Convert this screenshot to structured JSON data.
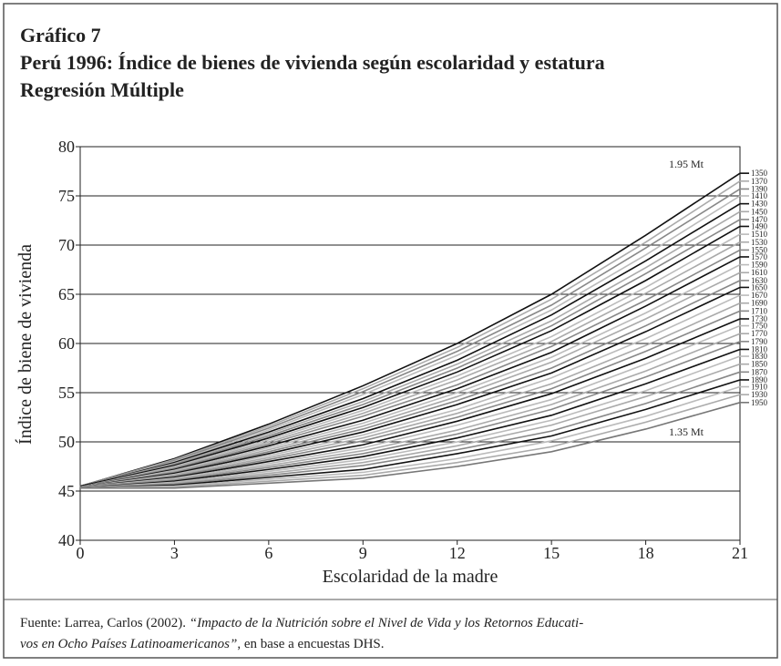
{
  "chart_data": {
    "type": "line",
    "title": [
      "Gráfico 7",
      "Perú 1996: Índice de bienes de vivienda según escolaridad y estatura",
      "Regresión Múltiple"
    ],
    "x_label": "Escolaridad de la madre",
    "y_label": "Índice de biene de vivienda",
    "annotations": [
      "1.95 Mt",
      "1.35 Mt"
    ],
    "x": [
      0,
      3,
      6,
      9,
      12,
      15,
      18,
      21
    ],
    "xlim": [
      0,
      21
    ],
    "xticks": [
      0,
      3,
      6,
      9,
      12,
      15,
      18,
      21
    ],
    "ylim": [
      40,
      80
    ],
    "yticks": [
      40,
      45,
      50,
      55,
      60,
      65,
      70,
      75,
      80
    ],
    "grid": true,
    "series": [
      {
        "name": "1350",
        "color": "#111",
        "values": [
          45.5,
          48.3,
          51.8,
          55.7,
          60.0,
          65.0,
          71.0,
          77.3
        ]
      },
      {
        "name": "1370",
        "color": "#aaa",
        "values": [
          45.5,
          48.2,
          51.6,
          55.4,
          59.6,
          64.5,
          70.3,
          76.5
        ]
      },
      {
        "name": "1390",
        "color": "#888",
        "values": [
          45.5,
          48.1,
          51.4,
          55.1,
          59.2,
          63.9,
          69.7,
          75.7
        ]
      },
      {
        "name": "1410",
        "color": "#bbb",
        "values": [
          45.5,
          48.0,
          51.2,
          54.8,
          58.8,
          63.4,
          69.0,
          75.0
        ]
      },
      {
        "name": "1430",
        "color": "#111",
        "values": [
          45.5,
          47.9,
          51.0,
          54.4,
          58.3,
          62.9,
          68.4,
          74.2
        ]
      },
      {
        "name": "1450",
        "color": "#aaa",
        "values": [
          45.5,
          47.8,
          50.8,
          54.1,
          57.9,
          62.3,
          67.7,
          73.4
        ]
      },
      {
        "name": "1470",
        "color": "#888",
        "values": [
          45.5,
          47.7,
          50.6,
          53.8,
          57.5,
          61.8,
          67.1,
          72.6
        ]
      },
      {
        "name": "1490",
        "color": "#111",
        "values": [
          45.5,
          47.6,
          50.4,
          53.5,
          57.1,
          61.3,
          66.4,
          71.9
        ]
      },
      {
        "name": "1510",
        "color": "#bbb",
        "values": [
          45.4,
          47.5,
          50.2,
          53.2,
          56.7,
          60.7,
          65.7,
          71.1
        ]
      },
      {
        "name": "1530",
        "color": "#aaa",
        "values": [
          45.4,
          47.4,
          50.0,
          52.9,
          56.3,
          60.2,
          65.1,
          70.3
        ]
      },
      {
        "name": "1550",
        "color": "#888",
        "values": [
          45.4,
          47.3,
          49.8,
          52.6,
          55.8,
          59.7,
          64.4,
          69.5
        ]
      },
      {
        "name": "1570",
        "color": "#111",
        "values": [
          45.4,
          47.2,
          49.6,
          52.2,
          55.4,
          59.1,
          63.8,
          68.8
        ]
      },
      {
        "name": "1590",
        "color": "#bbb",
        "values": [
          45.4,
          47.1,
          49.4,
          51.9,
          55.0,
          58.6,
          63.1,
          68.0
        ]
      },
      {
        "name": "1610",
        "color": "#aaa",
        "values": [
          45.4,
          47.0,
          49.2,
          51.6,
          54.6,
          58.1,
          62.5,
          67.2
        ]
      },
      {
        "name": "1630",
        "color": "#888",
        "values": [
          45.4,
          46.9,
          49.0,
          51.3,
          54.2,
          57.5,
          61.8,
          66.4
        ]
      },
      {
        "name": "1650",
        "color": "#111",
        "values": [
          45.4,
          46.8,
          48.8,
          51.0,
          53.8,
          57.0,
          61.2,
          65.7
        ]
      },
      {
        "name": "1670",
        "color": "#bbb",
        "values": [
          45.4,
          46.7,
          48.6,
          50.7,
          53.3,
          56.5,
          60.5,
          64.9
        ]
      },
      {
        "name": "1690",
        "color": "#aaa",
        "values": [
          45.4,
          46.6,
          48.4,
          50.4,
          52.9,
          55.9,
          59.8,
          64.1
        ]
      },
      {
        "name": "1710",
        "color": "#888",
        "values": [
          45.4,
          46.5,
          48.2,
          50.1,
          52.5,
          55.4,
          59.2,
          63.3
        ]
      },
      {
        "name": "1730",
        "color": "#111",
        "values": [
          45.4,
          46.4,
          48.0,
          49.7,
          52.1,
          54.9,
          58.5,
          62.5
        ]
      },
      {
        "name": "1750",
        "color": "#bbb",
        "values": [
          45.4,
          46.3,
          47.8,
          49.4,
          51.7,
          54.3,
          57.9,
          61.8
        ]
      },
      {
        "name": "1770",
        "color": "#aaa",
        "values": [
          45.4,
          46.2,
          47.6,
          49.1,
          51.2,
          53.8,
          57.2,
          61.0
        ]
      },
      {
        "name": "1790",
        "color": "#888",
        "values": [
          45.4,
          46.1,
          47.4,
          48.8,
          50.8,
          53.3,
          56.6,
          60.2
        ]
      },
      {
        "name": "1810",
        "color": "#111",
        "values": [
          45.3,
          46.0,
          47.2,
          48.5,
          50.4,
          52.7,
          55.9,
          59.4
        ]
      },
      {
        "name": "1830",
        "color": "#bbb",
        "values": [
          45.3,
          45.9,
          47.0,
          48.2,
          50.0,
          52.2,
          55.2,
          58.7
        ]
      },
      {
        "name": "1850",
        "color": "#aaa",
        "values": [
          45.3,
          45.8,
          46.8,
          47.9,
          49.6,
          51.7,
          54.6,
          57.9
        ]
      },
      {
        "name": "1870",
        "color": "#888",
        "values": [
          45.3,
          45.7,
          46.6,
          47.6,
          49.2,
          51.1,
          53.9,
          57.1
        ]
      },
      {
        "name": "1890",
        "color": "#111",
        "values": [
          45.3,
          45.6,
          46.4,
          47.2,
          48.8,
          50.6,
          53.3,
          56.3
        ]
      },
      {
        "name": "1910",
        "color": "#bbb",
        "values": [
          45.3,
          45.5,
          46.2,
          46.9,
          48.3,
          50.1,
          52.6,
          55.6
        ]
      },
      {
        "name": "1930",
        "color": "#aaa",
        "values": [
          45.3,
          45.4,
          46.0,
          46.6,
          47.9,
          49.5,
          52.0,
          54.8
        ]
      },
      {
        "name": "1950",
        "color": "#777",
        "values": [
          45.3,
          45.3,
          45.8,
          46.3,
          47.5,
          49.0,
          51.3,
          54.0
        ]
      }
    ]
  },
  "source": {
    "line1": [
      "Fuente: Larrea, Carlos (2002). ",
      "“Impacto de la Nutrición sobre el Nivel de Vida y los Retornos Educati-"
    ],
    "line2": [
      "vos en Ocho Países Latinoamericanos”",
      ", en base a encuestas DHS."
    ]
  }
}
